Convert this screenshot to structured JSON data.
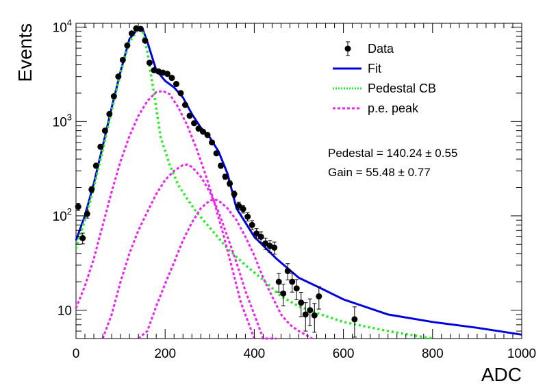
{
  "chart_data": {
    "type": "scatter",
    "xlabel": "ADC",
    "ylabel": "Events",
    "xlim": [
      0,
      1000
    ],
    "ylim": [
      5,
      11000
    ],
    "yscale": "log",
    "grid": false,
    "legend_position": "top-right",
    "x_ticks": [
      0,
      200,
      400,
      600,
      800,
      1000
    ],
    "y_ticks": [
      {
        "value": 10,
        "label": "10",
        "sup": ""
      },
      {
        "value": 100,
        "label": "10",
        "sup": "2"
      },
      {
        "value": 1000,
        "label": "10",
        "sup": "3"
      },
      {
        "value": 10000,
        "label": "10",
        "sup": "4"
      }
    ],
    "legend": [
      {
        "label": "Data",
        "kind": "marker",
        "color": "#000000"
      },
      {
        "label": "Fit",
        "kind": "line",
        "color": "#0000dd"
      },
      {
        "label": "Pedestal CB",
        "kind": "dotted",
        "color": "#22ee22"
      },
      {
        "label": "p.e. peak",
        "kind": "dashed",
        "color": "#ee22ee"
      }
    ],
    "annotations": [
      "Pedestal = 140.24 ± 0.55",
      "Gain = 55.48 ± 0.77"
    ],
    "series": [
      {
        "name": "Data",
        "kind": "points",
        "color": "#000000",
        "x": [
          5,
          15,
          25,
          35,
          45,
          55,
          65,
          75,
          85,
          95,
          105,
          115,
          125,
          135,
          145,
          155,
          165,
          175,
          185,
          195,
          205,
          215,
          225,
          235,
          245,
          255,
          265,
          275,
          285,
          295,
          305,
          315,
          325,
          335,
          345,
          355,
          365,
          375,
          385,
          395,
          405,
          415,
          425,
          435,
          445,
          455,
          465,
          475,
          485,
          495,
          505,
          515,
          525,
          535,
          545,
          625
        ],
        "y": [
          125,
          58,
          105,
          190,
          340,
          540,
          800,
          1200,
          1850,
          3000,
          4500,
          6400,
          8600,
          9700,
          9600,
          7200,
          4200,
          3500,
          3400,
          3300,
          3200,
          2900,
          2500,
          2000,
          1500,
          1150,
          960,
          840,
          780,
          720,
          600,
          460,
          340,
          260,
          220,
          170,
          128,
          118,
          98,
          80,
          65,
          60,
          51,
          48,
          46,
          20,
          15,
          26,
          20,
          17,
          12,
          9,
          10,
          8.8,
          14,
          8
        ]
      },
      {
        "name": "Fit",
        "kind": "line",
        "color": "#0000dd",
        "x": [
          0,
          20,
          40,
          60,
          80,
          100,
          120,
          140,
          150,
          160,
          180,
          200,
          220,
          240,
          260,
          280,
          300,
          320,
          340,
          360,
          380,
          400,
          450,
          500,
          550,
          600,
          700,
          800,
          900,
          1000
        ],
        "y": [
          55,
          100,
          220,
          550,
          1400,
          3400,
          7500,
          9800,
          9500,
          7000,
          3500,
          2700,
          2300,
          1800,
          1200,
          860,
          680,
          480,
          280,
          120,
          85,
          60,
          35,
          22,
          17,
          13,
          9,
          7.5,
          6.5,
          5.5
        ]
      },
      {
        "name": "Pedestal CB",
        "kind": "line",
        "color": "#22ee22",
        "x": [
          0,
          20,
          40,
          60,
          80,
          100,
          120,
          140,
          150,
          160,
          175,
          190,
          210,
          230,
          250,
          270,
          300,
          340,
          380,
          420,
          460,
          500,
          550,
          600,
          700,
          800
        ],
        "y": [
          45,
          90,
          200,
          500,
          1300,
          3300,
          7000,
          9600,
          9000,
          5500,
          2000,
          680,
          350,
          210,
          150,
          110,
          75,
          45,
          30,
          21,
          14,
          11,
          9,
          7.5,
          6,
          5
        ]
      },
      {
        "name": "p.e. peak",
        "kind": "line",
        "color": "#ee22ee",
        "x": [
          0,
          20,
          40,
          60,
          80,
          100,
          120,
          140,
          160,
          180,
          195,
          210,
          230,
          250,
          270,
          290,
          310,
          330,
          350,
          370,
          400
        ],
        "y": [
          10.5,
          18,
          35,
          80,
          180,
          380,
          700,
          1150,
          1650,
          2050,
          2100,
          1950,
          1400,
          900,
          520,
          280,
          140,
          65,
          28,
          12,
          4
        ]
      },
      {
        "name": "p.e. peak",
        "kind": "line",
        "color": "#ee22ee",
        "x": [
          60,
          80,
          100,
          120,
          140,
          160,
          180,
          200,
          220,
          240,
          250,
          260,
          280,
          300,
          320,
          340,
          360,
          380,
          400,
          420,
          450
        ],
        "y": [
          4,
          9,
          20,
          40,
          70,
          110,
          170,
          240,
          300,
          345,
          350,
          330,
          260,
          180,
          110,
          60,
          32,
          16,
          9,
          5,
          3
        ]
      },
      {
        "name": "p.e. peak",
        "kind": "line",
        "color": "#ee22ee",
        "x": [
          140,
          160,
          180,
          200,
          220,
          240,
          260,
          280,
          300,
          310,
          320,
          340,
          360,
          380,
          400,
          420,
          440,
          460,
          480,
          500,
          530
        ],
        "y": [
          3,
          6,
          11,
          19,
          32,
          55,
          85,
          120,
          145,
          150,
          145,
          120,
          90,
          60,
          38,
          22,
          14,
          9,
          7,
          6,
          5
        ]
      }
    ]
  }
}
